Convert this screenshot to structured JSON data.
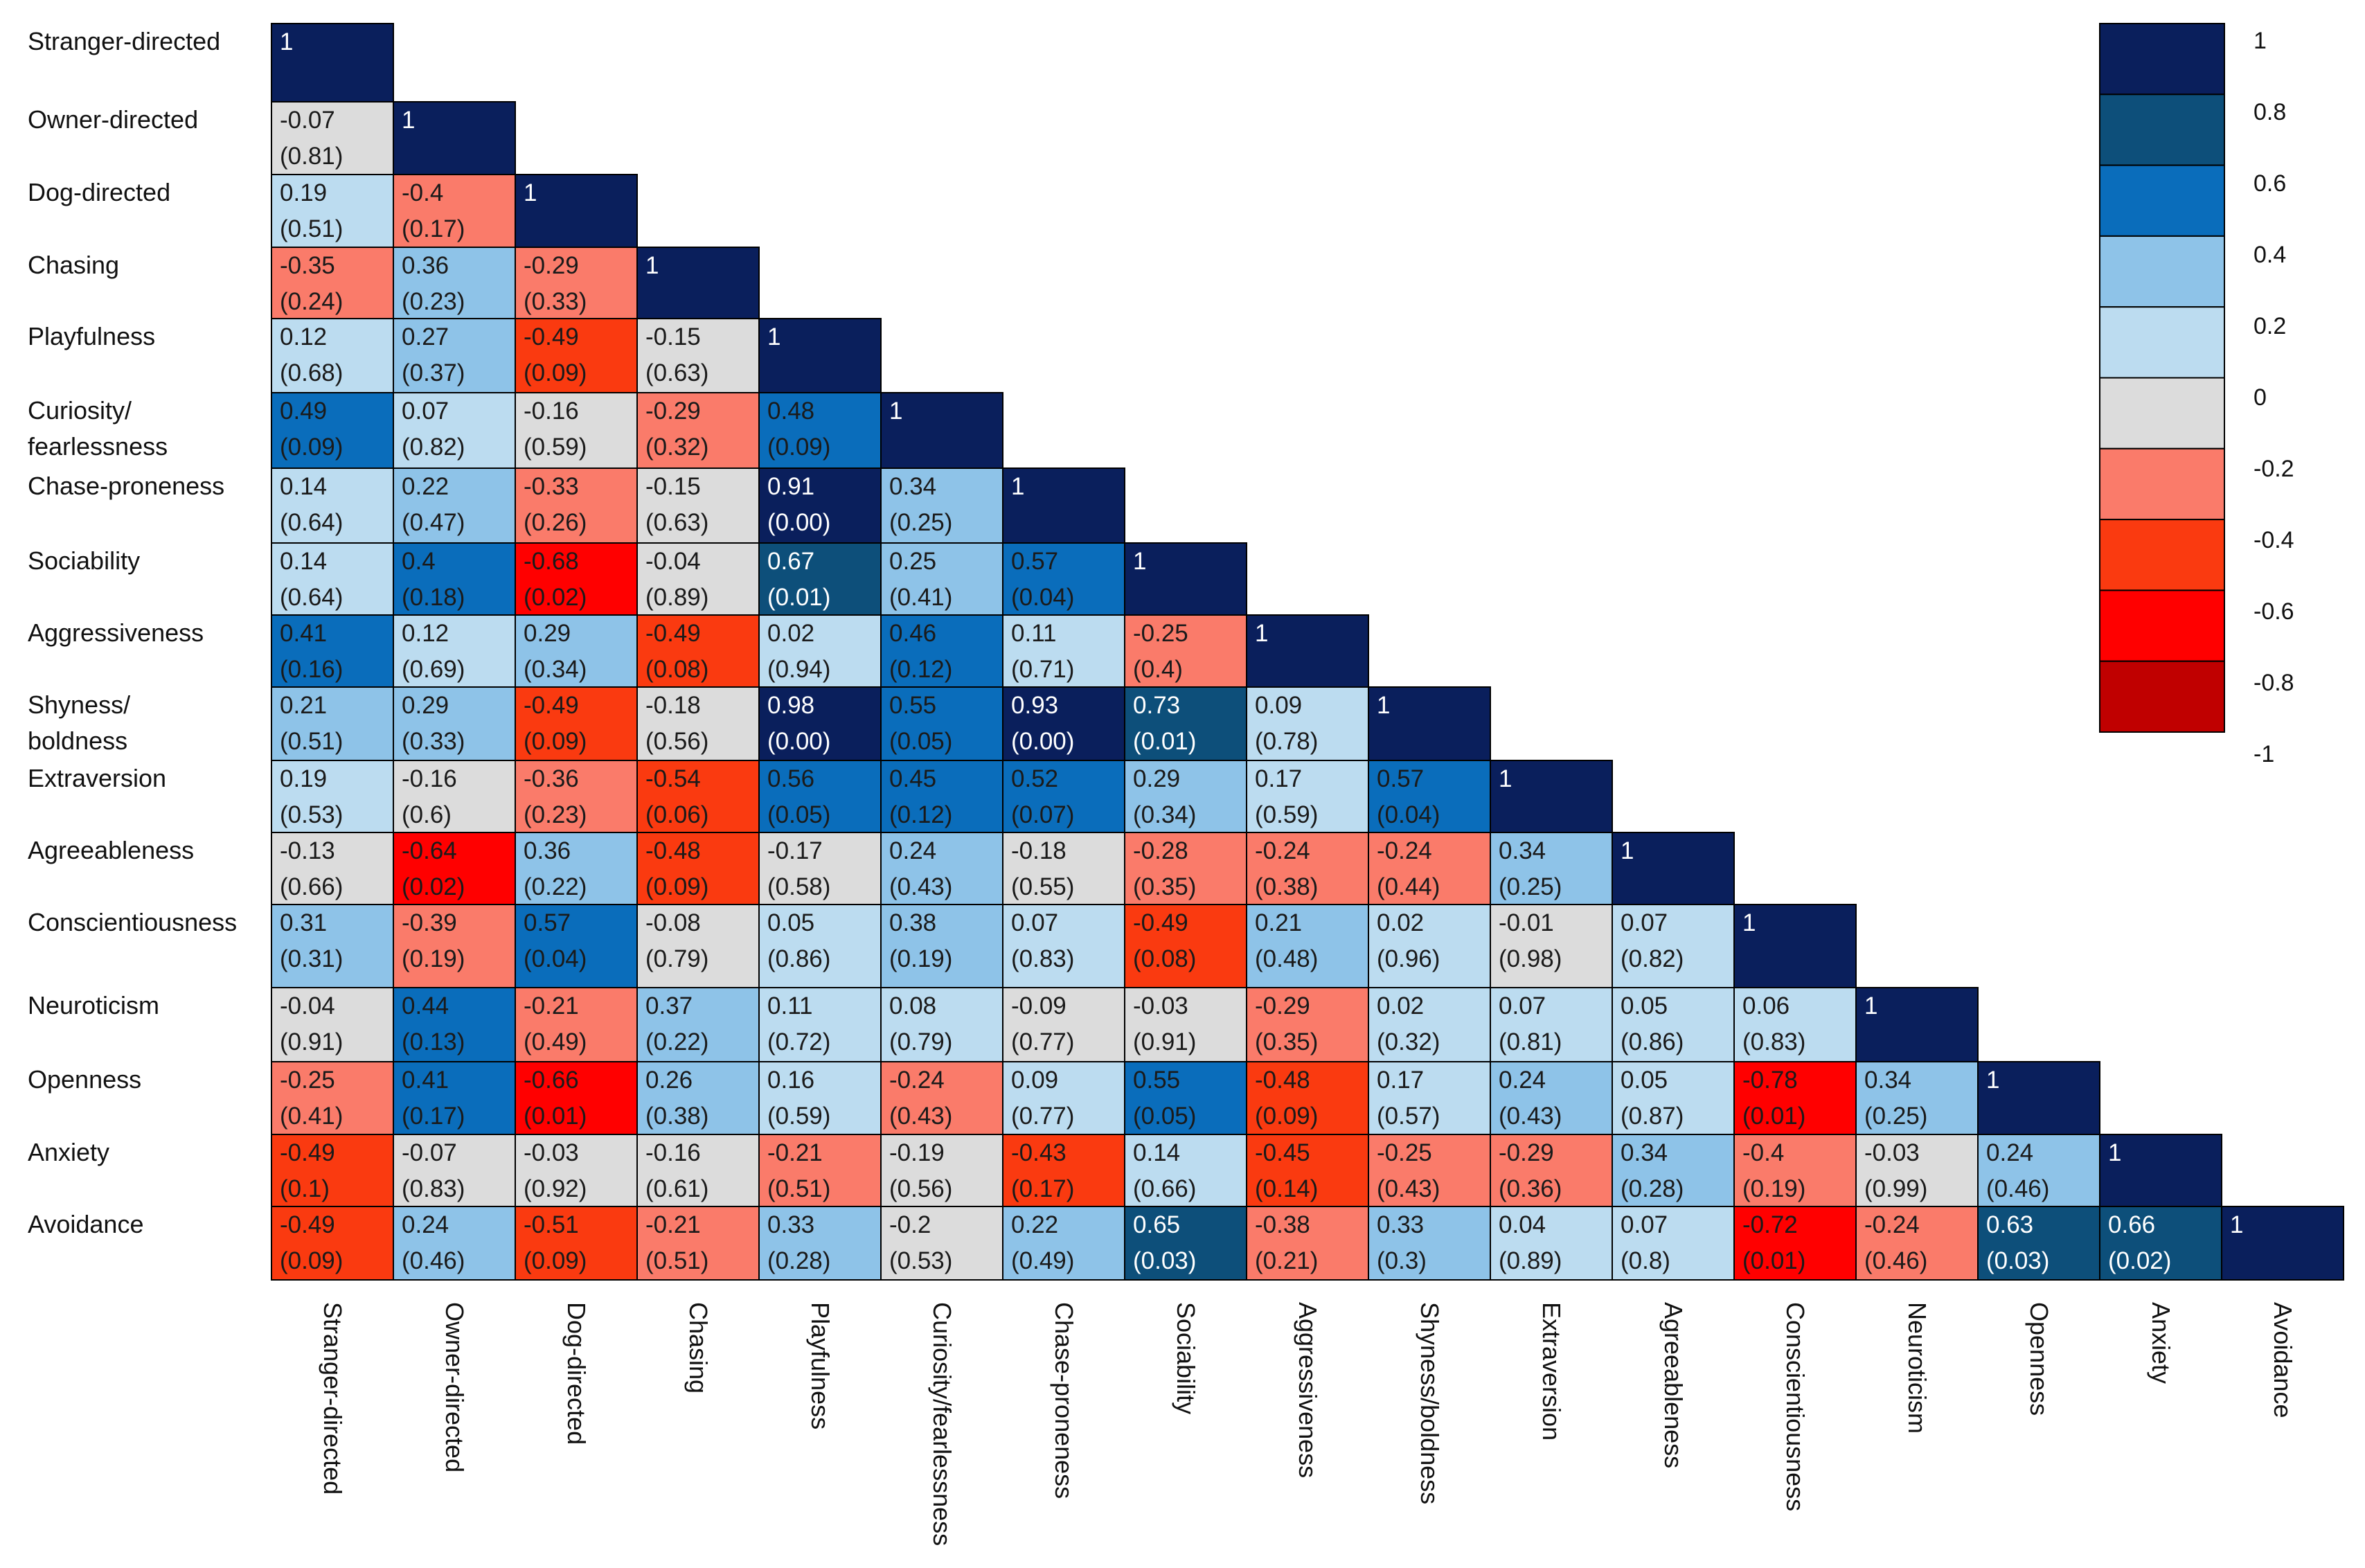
{
  "chart_data": {
    "type": "heatmap",
    "title": "",
    "xlabel": "",
    "ylabel": "",
    "value_range": [
      -1,
      1
    ],
    "row_labels": [
      [
        "Stranger-directed"
      ],
      [
        "Owner-directed"
      ],
      [
        "Dog-directed"
      ],
      [
        "Chasing"
      ],
      [
        "Playfulness"
      ],
      [
        "Curiosity/",
        "fearlessness"
      ],
      [
        "Chase-proneness"
      ],
      [
        "Sociability"
      ],
      [
        "Aggressiveness"
      ],
      [
        "Shyness/",
        "boldness"
      ],
      [
        "Extraversion"
      ],
      [
        "Agreeableness"
      ],
      [
        "Conscientiousness"
      ],
      [
        "Neuroticism"
      ],
      [
        "Openness"
      ],
      [
        "Anxiety"
      ],
      [
        "Avoidance"
      ]
    ],
    "column_labels": [
      "Stranger-directed",
      "Owner-directed",
      "Dog-directed",
      "Chasing",
      "Playfulness",
      "Curiosity/fearlessness",
      "Chase-proneness",
      "Sociability",
      "Aggressiveness",
      "Shyness/boldness",
      "Extraversion",
      "Agreeableness",
      "Conscientiousness",
      "Neuroticism",
      "Openness",
      "Anxiety",
      "Avoidance"
    ],
    "diagonal_label": "1",
    "correlations": [
      [],
      [
        "-0.07"
      ],
      [
        "0.19",
        "-0.4"
      ],
      [
        "-0.35",
        "0.36",
        "-0.29"
      ],
      [
        "0.12",
        "0.27",
        "-0.49",
        "-0.15"
      ],
      [
        "0.49",
        "0.07",
        "-0.16",
        "-0.29",
        "0.48"
      ],
      [
        "0.14",
        "0.22",
        "-0.33",
        "-0.15",
        "0.91",
        "0.34"
      ],
      [
        "0.14",
        "0.4",
        "-0.68",
        "-0.04",
        "0.67",
        "0.25",
        "0.57"
      ],
      [
        "0.41",
        "0.12",
        "0.29",
        "-0.49",
        "0.02",
        "0.46",
        "0.11",
        "-0.25"
      ],
      [
        "0.21",
        "0.29",
        "-0.49",
        "-0.18",
        "0.98",
        "0.55",
        "0.93",
        "0.73",
        "0.09"
      ],
      [
        "0.19",
        "-0.16",
        "-0.36",
        "-0.54",
        "0.56",
        "0.45",
        "0.52",
        "0.29",
        "0.17",
        "0.57"
      ],
      [
        "-0.13",
        "-0.64",
        "0.36",
        "-0.48",
        "-0.17",
        "0.24",
        "-0.18",
        "-0.28",
        "-0.24",
        "-0.24",
        "0.34"
      ],
      [
        "0.31",
        "-0.39",
        "0.57",
        "-0.08",
        "0.05",
        "0.38",
        "0.07",
        "-0.49",
        "0.21",
        "0.02",
        "-0.01",
        "0.07"
      ],
      [
        "-0.04",
        "0.44",
        "-0.21",
        "0.37",
        "0.11",
        "0.08",
        "-0.09",
        "-0.03",
        "-0.29",
        "0.02",
        "0.07",
        "0.05",
        "0.06"
      ],
      [
        "-0.25",
        "0.41",
        "-0.66",
        "0.26",
        "0.16",
        "-0.24",
        "0.09",
        "0.55",
        "-0.48",
        "0.17",
        "0.24",
        "0.05",
        "-0.78",
        "0.34"
      ],
      [
        "-0.49",
        "-0.07",
        "-0.03",
        "-0.16",
        "-0.21",
        "-0.19",
        "-0.43",
        "0.14",
        "-0.45",
        "-0.25",
        "-0.29",
        "0.34",
        "-0.4",
        "-0.03",
        "0.24"
      ],
      [
        "-0.49",
        "0.24",
        "-0.51",
        "-0.21",
        "0.33",
        "-0.2",
        "0.22",
        "0.65",
        "-0.38",
        "0.33",
        "0.04",
        "0.07",
        "-0.72",
        "-0.24",
        "0.63",
        "0.66"
      ]
    ],
    "p_values": [
      [],
      [
        "(0.81)"
      ],
      [
        "(0.51)",
        "(0.17)"
      ],
      [
        "(0.24)",
        "(0.23)",
        "(0.33)"
      ],
      [
        "(0.68)",
        "(0.37)",
        "(0.09)",
        "(0.63)"
      ],
      [
        "(0.09)",
        "(0.82)",
        "(0.59)",
        "(0.32)",
        "(0.09)"
      ],
      [
        "(0.64)",
        "(0.47)",
        "(0.26)",
        "(0.63)",
        "(0.00)",
        "(0.25)"
      ],
      [
        "(0.64)",
        "(0.18)",
        "(0.02)",
        "(0.89)",
        "(0.01)",
        "(0.41)",
        "(0.04)"
      ],
      [
        "(0.16)",
        "(0.69)",
        "(0.34)",
        "(0.08)",
        "(0.94)",
        "(0.12)",
        "(0.71)",
        "(0.4)"
      ],
      [
        "(0.51)",
        "(0.33)",
        "(0.09)",
        "(0.56)",
        "(0.00)",
        "(0.05)",
        "(0.00)",
        "(0.01)",
        "(0.78)"
      ],
      [
        "(0.53)",
        "(0.6)",
        "(0.23)",
        "(0.06)",
        "(0.05)",
        "(0.12)",
        "(0.07)",
        "(0.34)",
        "(0.59)",
        "(0.04)"
      ],
      [
        "(0.66)",
        "(0.02)",
        "(0.22)",
        "(0.09)",
        "(0.58)",
        "(0.43)",
        "(0.55)",
        "(0.35)",
        "(0.38)",
        "(0.44)",
        "(0.25)"
      ],
      [
        "(0.31)",
        "(0.19)",
        "(0.04)",
        "(0.79)",
        "(0.86)",
        "(0.19)",
        "(0.83)",
        "(0.08)",
        "(0.48)",
        "(0.96)",
        "(0.98)",
        "(0.82)"
      ],
      [
        "(0.91)",
        "(0.13)",
        "(0.49)",
        "(0.22)",
        "(0.72)",
        "(0.79)",
        "(0.77)",
        "(0.91)",
        "(0.35)",
        "(0.32)",
        "(0.81)",
        "(0.86)",
        "(0.83)"
      ],
      [
        "(0.41)",
        "(0.17)",
        "(0.01)",
        "(0.38)",
        "(0.59)",
        "(0.43)",
        "(0.77)",
        "(0.05)",
        "(0.09)",
        "(0.57)",
        "(0.43)",
        "(0.87)",
        "(0.01)",
        "(0.25)"
      ],
      [
        "(0.1)",
        "(0.83)",
        "(0.92)",
        "(0.61)",
        "(0.51)",
        "(0.56)",
        "(0.17)",
        "(0.66)",
        "(0.14)",
        "(0.43)",
        "(0.36)",
        "(0.28)",
        "(0.19)",
        "(0.99)",
        "(0.46)"
      ],
      [
        "(0.09)",
        "(0.46)",
        "(0.09)",
        "(0.51)",
        "(0.28)",
        "(0.53)",
        "(0.49)",
        "(0.03)",
        "(0.21)",
        "(0.3)",
        "(0.89)",
        "(0.8)",
        "(0.01)",
        "(0.46)",
        "(0.03)",
        "(0.02)"
      ]
    ],
    "legend": {
      "placement": "top-right",
      "ticks": [
        "1",
        "0.8",
        "0.6",
        "0.4",
        "0.2",
        "0",
        "-0.2",
        "-0.4",
        "-0.6",
        "-0.8",
        "-1"
      ],
      "colors": [
        "#0a1f5c",
        "#0d4f7a",
        "#0a6dbb",
        "#8ec3e8",
        "#bcdcf0",
        "#dcdcdc",
        "#fa7b6a",
        "#fa3a10",
        "#ff0000",
        "#c00000"
      ]
    }
  }
}
